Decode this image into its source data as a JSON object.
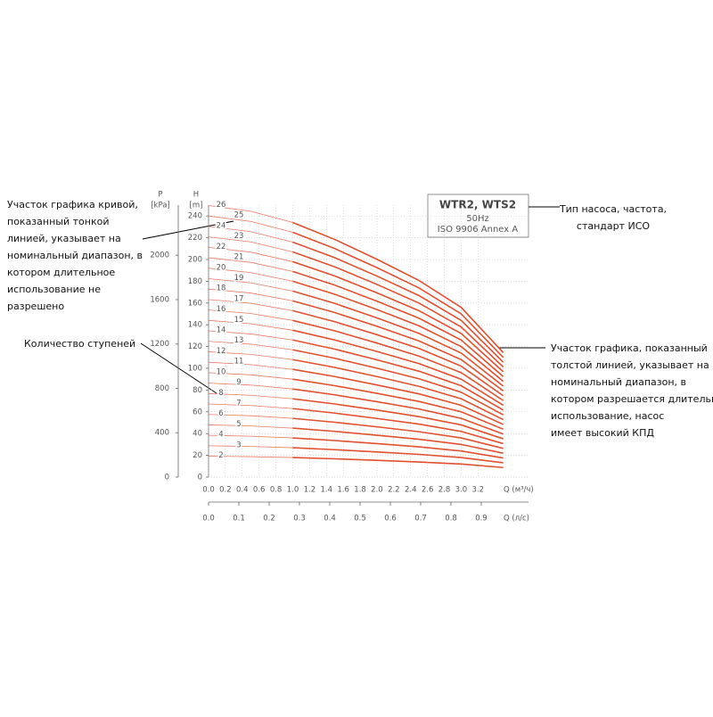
{
  "chart_data": {
    "type": "line",
    "box_title": "WTR2, WTS2",
    "box_lines": [
      "50Hz",
      "ISO 9906  Annex A"
    ],
    "y_label": [
      "H",
      "[m]"
    ],
    "y2_label": [
      "P",
      "[kPa]"
    ],
    "x_label": "Q (м³/ч)",
    "x2_label": "Q (л/с)",
    "x": [
      0,
      0.5,
      1.0,
      1.5,
      2.0,
      2.5,
      3.0,
      3.5
    ],
    "xlim": [
      0,
      3.8
    ],
    "xticks": [
      {
        "value": 0,
        "label": "0.0"
      },
      0.2,
      0.4,
      0.6,
      0.8,
      {
        "value": 1,
        "label": "1.0"
      },
      1.2,
      1.4,
      1.6,
      1.8,
      {
        "value": 2,
        "label": "2.0"
      },
      2.2,
      2.4,
      2.6,
      2.8,
      {
        "value": 3,
        "label": "3.0"
      },
      3.2
    ],
    "x2lim": [
      0,
      1.056
    ],
    "x2ticks": [
      {
        "value": 0,
        "label": "0.0"
      },
      0.1,
      0.2,
      0.3,
      0.4,
      0.5,
      0.6,
      0.7,
      0.8,
      0.9
    ],
    "ylim": [
      0,
      250
    ],
    "yticks": [
      0,
      20,
      40,
      60,
      80,
      100,
      120,
      140,
      160,
      180,
      200,
      220,
      240
    ],
    "y2lim": [
      0,
      2452
    ],
    "y2ticks": [
      0,
      400,
      800,
      1200,
      1600,
      2000
    ],
    "grid": true,
    "color": "#e2502f",
    "series": [
      {
        "name": "2",
        "values": [
          19.2,
          18.8,
          18,
          16.8,
          15.4,
          13.9,
          12,
          8.8
        ]
      },
      {
        "name": "3",
        "values": [
          28.8,
          28.2,
          27,
          25.2,
          23.1,
          20.9,
          18,
          13.2
        ]
      },
      {
        "name": "4",
        "values": [
          38.4,
          37.6,
          36,
          33.6,
          30.8,
          27.8,
          24,
          17.6
        ]
      },
      {
        "name": "5",
        "values": [
          48,
          47,
          45,
          42,
          38.5,
          34.8,
          30,
          22
        ]
      },
      {
        "name": "6",
        "values": [
          57.6,
          56.4,
          54,
          50.4,
          46.2,
          41.7,
          36,
          26.4
        ]
      },
      {
        "name": "7",
        "values": [
          67.2,
          65.8,
          63,
          58.8,
          53.9,
          48.7,
          42,
          30.8
        ]
      },
      {
        "name": "8",
        "values": [
          76.8,
          75.2,
          72,
          67.2,
          61.6,
          55.6,
          48,
          35.2
        ]
      },
      {
        "name": "9",
        "values": [
          86.4,
          84.6,
          81,
          75.6,
          69.3,
          62.6,
          54,
          39.6
        ]
      },
      {
        "name": "10",
        "values": [
          96,
          94,
          90,
          84,
          77,
          69.5,
          60,
          44
        ]
      },
      {
        "name": "11",
        "values": [
          105.6,
          103.4,
          99,
          92.4,
          84.7,
          76.5,
          66,
          48.4
        ]
      },
      {
        "name": "12",
        "values": [
          115.2,
          112.8,
          108,
          100.8,
          92.4,
          83.4,
          72,
          52.8
        ]
      },
      {
        "name": "13",
        "values": [
          124.8,
          122.2,
          117,
          109.2,
          100.1,
          90.4,
          78,
          57.2
        ]
      },
      {
        "name": "14",
        "values": [
          134.4,
          131.6,
          126,
          117.6,
          107.8,
          97.3,
          84,
          61.6
        ]
      },
      {
        "name": "15",
        "values": [
          144,
          141,
          135,
          126,
          115.5,
          104.3,
          90,
          66
        ]
      },
      {
        "name": "16",
        "values": [
          153.6,
          150.4,
          144,
          134.4,
          123.2,
          111.2,
          96,
          70.4
        ]
      },
      {
        "name": "17",
        "values": [
          163.2,
          159.8,
          153,
          142.8,
          130.9,
          118.2,
          102,
          74.8
        ]
      },
      {
        "name": "18",
        "values": [
          172.8,
          169.2,
          162,
          151.2,
          138.6,
          125.1,
          108,
          79.2
        ]
      },
      {
        "name": "19",
        "values": [
          182.4,
          178.6,
          171,
          159.6,
          146.3,
          132.1,
          114,
          83.6
        ]
      },
      {
        "name": "20",
        "values": [
          192,
          188,
          180,
          168,
          154,
          139,
          120,
          88
        ]
      },
      {
        "name": "21",
        "values": [
          201.6,
          197.4,
          189,
          176.4,
          161.7,
          146,
          126,
          92.4
        ]
      },
      {
        "name": "22",
        "values": [
          211.2,
          206.8,
          198,
          184.8,
          169.4,
          152.9,
          132,
          96.8
        ]
      },
      {
        "name": "23",
        "values": [
          220.8,
          216.2,
          207,
          193.2,
          177.1,
          159.9,
          138,
          101.2
        ]
      },
      {
        "name": "24",
        "values": [
          230.4,
          225.6,
          216,
          201.6,
          184.8,
          166.8,
          144,
          105.6
        ]
      },
      {
        "name": "25",
        "values": [
          240,
          235,
          225,
          210,
          192.5,
          173.8,
          150,
          110
        ]
      },
      {
        "name": "26",
        "values": [
          249.6,
          244.4,
          234,
          218.4,
          200.2,
          180.7,
          156,
          114.4
        ]
      }
    ]
  },
  "annotations": {
    "thin_line": [
      "Участок графика кривой,",
      "показанный тонкой",
      "линией, указывает на",
      "номинальный диапазон, в",
      "котором длительное",
      "использование не",
      "разрешено"
    ],
    "stages": [
      "Количество ступеней"
    ],
    "pump_type": [
      "Тип насоса, частота,",
      "стандарт ИСО"
    ],
    "thick_line": [
      "Участок графика, показанный",
      "толстой линией, указывает на",
      "номинальный диапазон, в",
      "котором разрешается длительное",
      "использование, насос",
      "имеет высокий КПД"
    ]
  }
}
